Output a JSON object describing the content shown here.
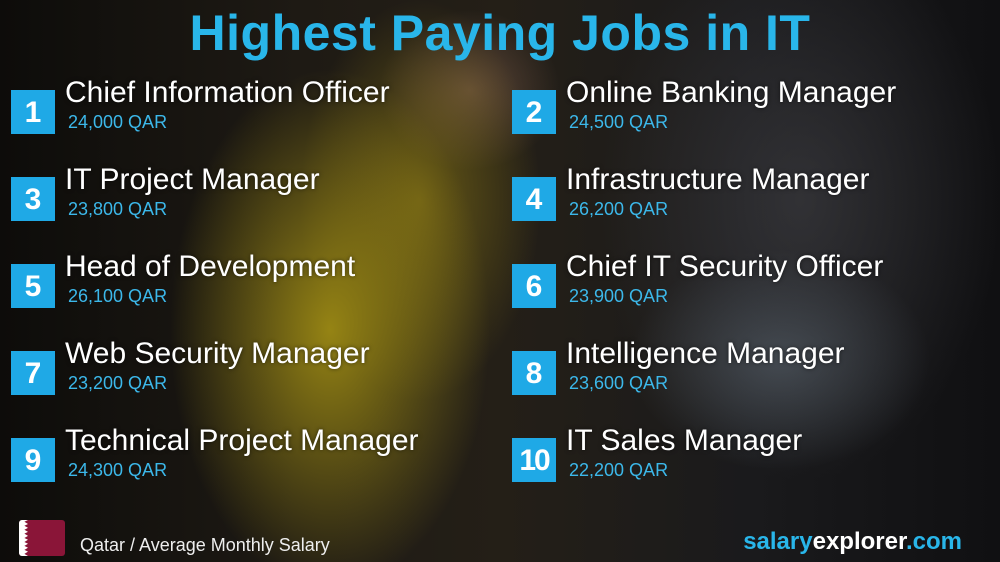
{
  "title": "Highest Paying Jobs in IT",
  "jobs": [
    {
      "rank": "1",
      "title": "Chief Information Officer",
      "salary": "24,000 QAR"
    },
    {
      "rank": "2",
      "title": "Online Banking Manager",
      "salary": "24,500 QAR"
    },
    {
      "rank": "3",
      "title": "IT Project Manager",
      "salary": "23,800 QAR"
    },
    {
      "rank": "4",
      "title": "Infrastructure Manager",
      "salary": "26,200 QAR"
    },
    {
      "rank": "5",
      "title": "Head of Development",
      "salary": "26,100 QAR"
    },
    {
      "rank": "6",
      "title": "Chief IT Security Officer",
      "salary": "23,900 QAR"
    },
    {
      "rank": "7",
      "title": "Web Security Manager",
      "salary": "23,200 QAR"
    },
    {
      "rank": "8",
      "title": "Intelligence Manager",
      "salary": "23,600 QAR"
    },
    {
      "rank": "9",
      "title": "Technical Project Manager",
      "salary": "24,300 QAR"
    },
    {
      "rank": "10",
      "title": "IT Sales Manager",
      "salary": "22,200 QAR"
    }
  ],
  "footer": {
    "caption": "Qatar / Average Monthly Salary",
    "flag": "qatar-flag",
    "brand_a": "salary",
    "brand_b": "explorer",
    "brand_c": ".com"
  },
  "colors": {
    "accent": "#1fa9e6",
    "flag": "#8a1538"
  }
}
